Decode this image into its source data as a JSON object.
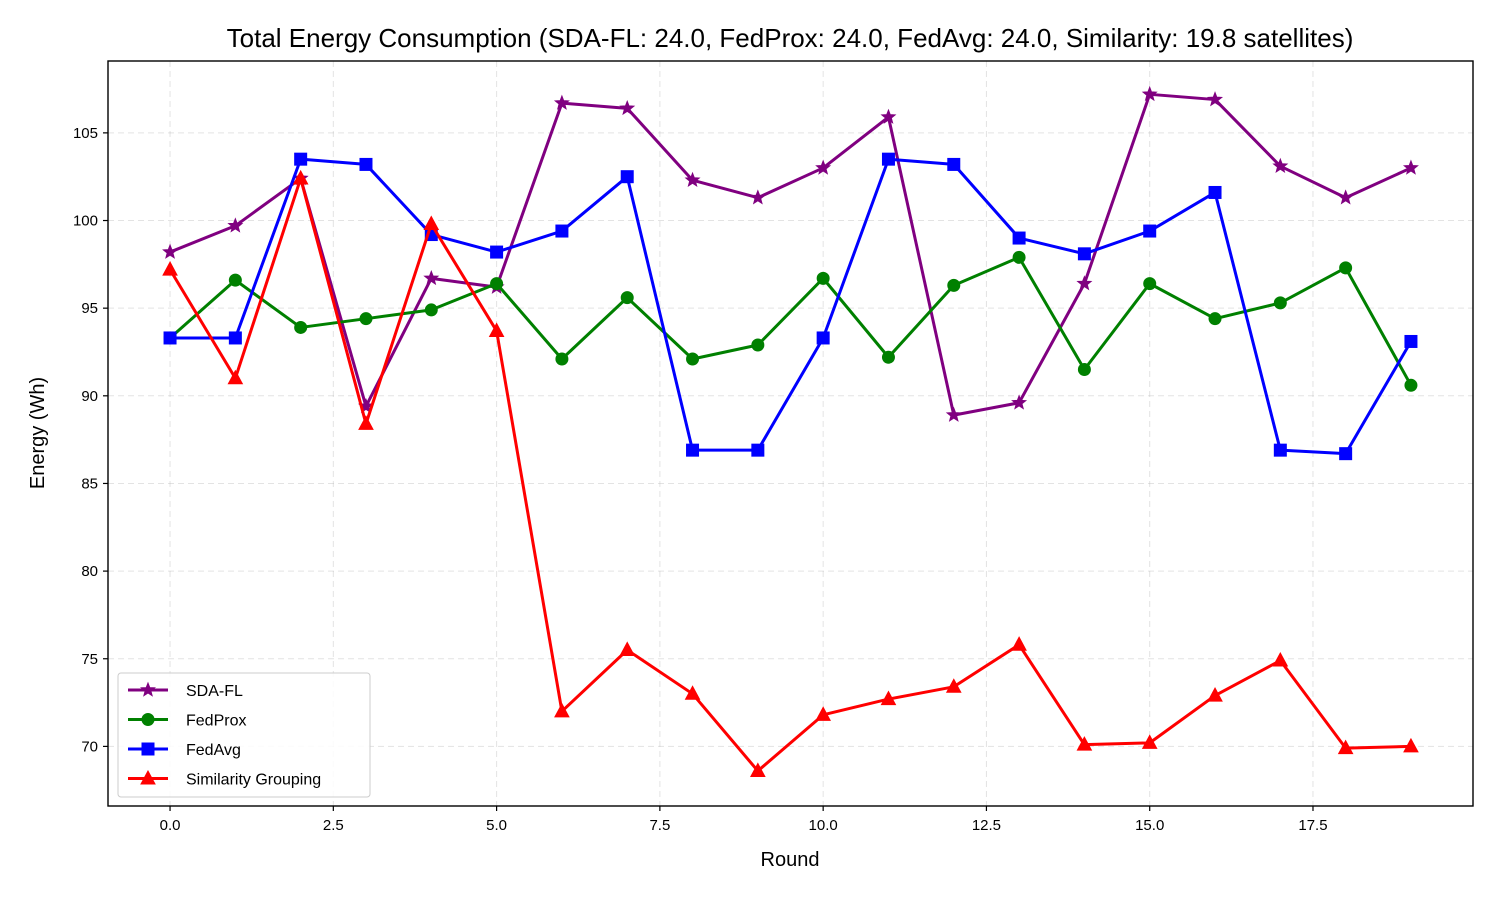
{
  "chart_data": {
    "type": "line",
    "title": "Total Energy Consumption (SDA-FL: 24.0, FedProx: 24.0, FedAvg: 24.0, Similarity: 19.8 satellites)",
    "xlabel": "Round",
    "ylabel": "Energy (Wh)",
    "xlim": [
      -0.95,
      19.95
    ],
    "ylim": [
      66.6,
      109.1
    ],
    "xticks": [
      0,
      2.5,
      5,
      7.5,
      10,
      12.5,
      15,
      17.5
    ],
    "xtick_labels": [
      "0.0",
      "2.5",
      "5.0",
      "7.5",
      "10.0",
      "12.5",
      "15.0",
      "17.5"
    ],
    "yticks": [
      70,
      75,
      80,
      85,
      90,
      95,
      100,
      105
    ],
    "ytick_labels": [
      "70",
      "75",
      "80",
      "85",
      "90",
      "95",
      "100",
      "105"
    ],
    "grid": true,
    "legend_position": "lower-left",
    "x": [
      0,
      1,
      2,
      3,
      4,
      5,
      6,
      7,
      8,
      9,
      10,
      11,
      12,
      13,
      14,
      15,
      16,
      17,
      18,
      19
    ],
    "series": [
      {
        "name": "SDA-FL",
        "color": "#800080",
        "marker": "star",
        "values": [
          98.2,
          99.7,
          102.4,
          89.4,
          96.7,
          96.2,
          106.7,
          106.4,
          102.3,
          101.3,
          103.0,
          105.9,
          88.9,
          89.6,
          96.4,
          107.2,
          106.9,
          103.1,
          101.3,
          103.0
        ]
      },
      {
        "name": "FedProx",
        "color": "#008000",
        "marker": "circle",
        "values": [
          93.3,
          96.6,
          93.9,
          94.4,
          94.9,
          96.4,
          92.1,
          95.6,
          92.1,
          92.9,
          96.7,
          92.2,
          96.3,
          97.9,
          91.5,
          96.4,
          94.4,
          95.3,
          97.3,
          90.6
        ]
      },
      {
        "name": "FedAvg",
        "color": "#0000ff",
        "marker": "square",
        "values": [
          93.3,
          93.3,
          103.5,
          103.2,
          99.2,
          98.2,
          99.4,
          102.5,
          86.9,
          86.9,
          93.3,
          103.5,
          103.2,
          99.0,
          98.1,
          99.4,
          101.6,
          86.9,
          86.7,
          93.1
        ]
      },
      {
        "name": "Similarity Grouping",
        "color": "#ff0000",
        "marker": "triangle",
        "values": [
          97.2,
          91.0,
          102.4,
          88.4,
          99.8,
          93.7,
          72.0,
          75.5,
          73.0,
          68.6,
          71.8,
          72.7,
          73.4,
          75.8,
          70.1,
          70.2,
          72.9,
          74.9,
          69.9,
          70.0
        ]
      }
    ]
  }
}
